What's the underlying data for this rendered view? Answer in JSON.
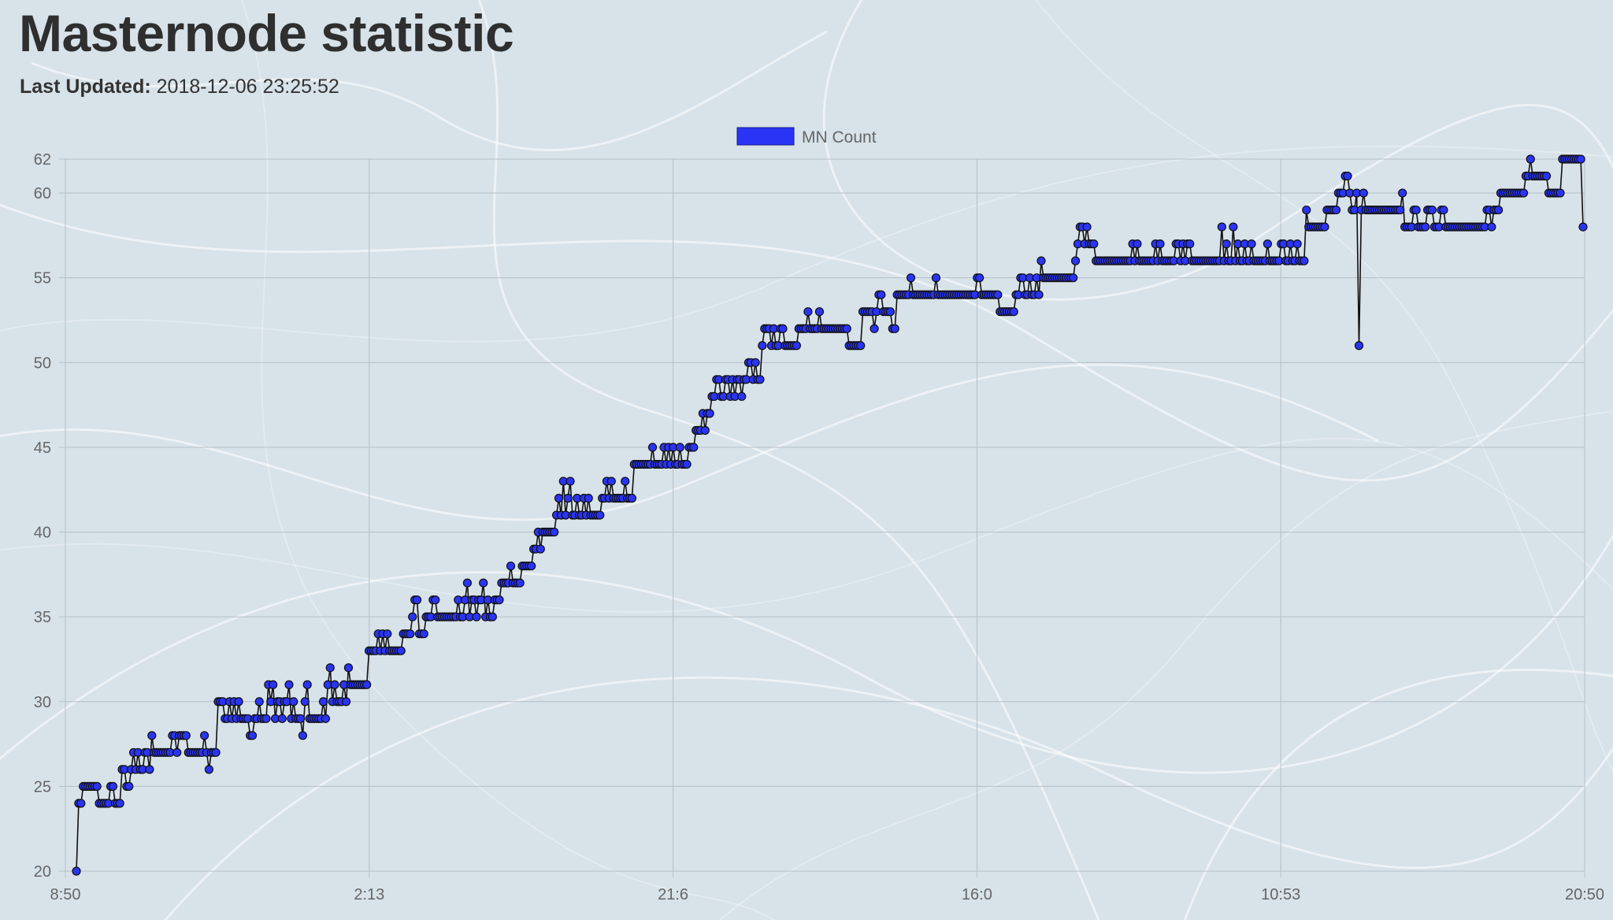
{
  "page": {
    "title": "Masternode statistic",
    "updated_label": "Last Updated:",
    "updated_value": "2018-12-06 23:25:52"
  },
  "colors": {
    "point_fill": "#2a34f4",
    "line": "#111111",
    "grid": "#b6c0c6",
    "background": "#d7e2e9"
  },
  "chart_data": {
    "type": "line",
    "title": "",
    "xlabel": "",
    "ylabel": "",
    "legend": {
      "position": "top-center",
      "entries": [
        "MN Count"
      ]
    },
    "grid": true,
    "ylim": [
      20,
      62
    ],
    "yticks": [
      20,
      25,
      30,
      35,
      40,
      45,
      50,
      55,
      60,
      62
    ],
    "xticks": [
      "8:50",
      "2:13",
      "21:6",
      "16:0",
      "10:53",
      "20:50"
    ],
    "series": [
      {
        "name": "MN Count",
        "values": [
          20,
          24,
          24,
          25,
          25,
          25,
          25,
          25,
          25,
          25,
          24,
          24,
          24,
          24,
          24,
          25,
          25,
          24,
          24,
          24,
          26,
          26,
          25,
          25,
          26,
          27,
          26,
          27,
          26,
          26,
          27,
          27,
          26,
          28,
          27,
          27,
          27,
          27,
          27,
          27,
          27,
          27,
          28,
          28,
          27,
          28,
          28,
          28,
          28,
          27,
          27,
          27,
          27,
          27,
          27,
          27,
          28,
          27,
          26,
          27,
          27,
          27,
          30,
          30,
          30,
          29,
          29,
          30,
          29,
          30,
          29,
          30,
          29,
          29,
          29,
          29,
          28,
          28,
          29,
          29,
          30,
          29,
          29,
          29,
          31,
          30,
          31,
          29,
          30,
          30,
          29,
          30,
          30,
          31,
          29,
          30,
          29,
          29,
          29,
          28,
          30,
          31,
          29,
          29,
          29,
          29,
          29,
          29,
          30,
          29,
          31,
          32,
          30,
          31,
          30,
          30,
          30,
          31,
          30,
          32,
          31,
          31,
          31,
          31,
          31,
          31,
          31,
          31,
          33,
          33,
          33,
          33,
          34,
          33,
          34,
          33,
          34,
          33,
          33,
          33,
          33,
          33,
          33,
          34,
          34,
          34,
          34,
          35,
          36,
          36,
          34,
          34,
          34,
          35,
          35,
          35,
          36,
          36,
          35,
          35,
          35,
          35,
          35,
          35,
          35,
          35,
          35,
          36,
          35,
          35,
          36,
          37,
          35,
          36,
          36,
          35,
          36,
          36,
          37,
          35,
          36,
          35,
          35,
          36,
          36,
          36,
          37,
          37,
          37,
          37,
          38,
          37,
          37,
          37,
          37,
          38,
          38,
          38,
          38,
          38,
          39,
          39,
          40,
          39,
          40,
          40,
          40,
          40,
          40,
          40,
          41,
          42,
          41,
          43,
          41,
          42,
          43,
          41,
          41,
          42,
          41,
          41,
          42,
          41,
          42,
          41,
          41,
          41,
          41,
          41,
          42,
          42,
          43,
          42,
          43,
          42,
          42,
          42,
          42,
          42,
          43,
          42,
          42,
          42,
          44,
          44,
          44,
          44,
          44,
          44,
          44,
          44,
          45,
          44,
          44,
          44,
          44,
          45,
          44,
          45,
          44,
          45,
          44,
          44,
          45,
          44,
          44,
          44,
          45,
          45,
          45,
          46,
          46,
          46,
          47,
          46,
          47,
          47,
          48,
          48,
          49,
          49,
          48,
          48,
          49,
          49,
          48,
          49,
          48,
          49,
          49,
          48,
          49,
          49,
          50,
          50,
          49,
          50,
          49,
          49,
          51,
          52,
          52,
          52,
          51,
          52,
          51,
          51,
          52,
          52,
          51,
          51,
          51,
          51,
          51,
          51,
          52,
          52,
          52,
          52,
          53,
          52,
          52,
          52,
          52,
          53,
          52,
          52,
          52,
          52,
          52,
          52,
          52,
          52,
          52,
          52,
          52,
          52,
          51,
          51,
          51,
          51,
          51,
          51,
          53,
          53,
          53,
          53,
          53,
          52,
          53,
          54,
          54,
          53,
          53,
          53,
          53,
          52,
          52,
          54,
          54,
          54,
          54,
          54,
          54,
          55,
          54,
          54,
          54,
          54,
          54,
          54,
          54,
          54,
          54,
          54,
          55,
          54,
          54,
          54,
          54,
          54,
          54,
          54,
          54,
          54,
          54,
          54,
          54,
          54,
          54,
          54,
          54,
          54,
          55,
          55,
          54,
          54,
          54,
          54,
          54,
          54,
          54,
          54,
          53,
          53,
          53,
          53,
          53,
          53,
          53,
          54,
          54,
          55,
          55,
          54,
          54,
          55,
          54,
          54,
          55,
          54,
          56,
          55,
          55,
          55,
          55,
          55,
          55,
          55,
          55,
          55,
          55,
          55,
          55,
          55,
          55,
          56,
          57,
          58,
          58,
          57,
          58,
          57,
          57,
          57,
          56,
          56,
          56,
          56,
          56,
          56,
          56,
          56,
          56,
          56,
          56,
          56,
          56,
          56,
          56,
          56,
          57,
          56,
          57,
          56,
          56,
          56,
          56,
          56,
          56,
          56,
          57,
          56,
          57,
          56,
          56,
          56,
          56,
          56,
          56,
          57,
          57,
          56,
          57,
          56,
          57,
          57,
          56,
          56,
          56,
          56,
          56,
          56,
          56,
          56,
          56,
          56,
          56,
          56,
          56,
          58,
          56,
          57,
          56,
          56,
          58,
          56,
          57,
          56,
          56,
          57,
          56,
          56,
          57,
          56,
          56,
          56,
          56,
          56,
          56,
          57,
          56,
          56,
          56,
          56,
          56,
          57,
          57,
          56,
          56,
          57,
          56,
          56,
          57,
          56,
          56,
          56,
          59,
          58,
          58,
          58,
          58,
          58,
          58,
          58,
          58,
          59,
          59,
          59,
          59,
          59,
          60,
          60,
          60,
          61,
          61,
          60,
          59,
          59,
          60,
          51,
          59,
          60,
          59,
          59,
          59,
          59,
          59,
          59,
          59,
          59,
          59,
          59,
          59,
          59,
          59,
          59,
          59,
          59,
          60,
          58,
          58,
          58,
          58,
          59,
          59,
          58,
          58,
          58,
          58,
          59,
          59,
          59,
          58,
          58,
          58,
          59,
          59,
          58,
          58,
          58,
          58,
          58,
          58,
          58,
          58,
          58,
          58,
          58,
          58,
          58,
          58,
          58,
          58,
          58,
          58,
          59,
          59,
          58,
          59,
          59,
          59,
          60,
          60,
          60,
          60,
          60,
          60,
          60,
          60,
          60,
          60,
          60,
          61,
          61,
          62,
          61,
          61,
          61,
          61,
          61,
          61,
          61,
          60,
          60,
          60,
          60,
          60,
          60,
          62,
          62,
          62,
          62,
          62,
          62,
          62,
          62,
          62,
          58
        ]
      }
    ]
  }
}
